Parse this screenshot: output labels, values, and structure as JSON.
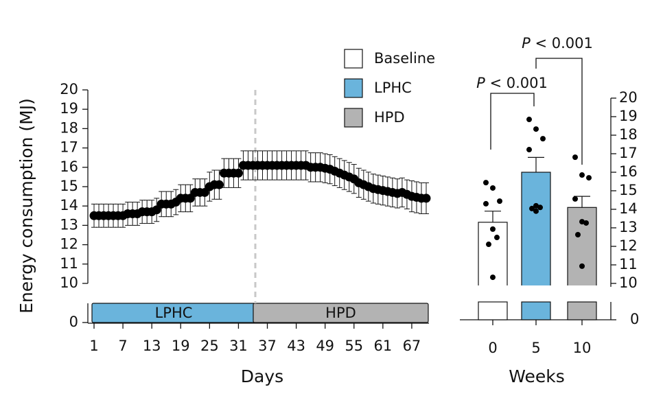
{
  "chart_data": [
    {
      "type": "scatter",
      "ylabel": "Energy consumption (MJ)",
      "xlabel": "Days",
      "x": [
        1,
        2,
        3,
        4,
        5,
        6,
        7,
        8,
        9,
        10,
        11,
        12,
        13,
        14,
        15,
        16,
        17,
        18,
        19,
        20,
        21,
        22,
        23,
        24,
        25,
        26,
        27,
        28,
        29,
        30,
        31,
        32,
        33,
        34,
        35,
        36,
        37,
        38,
        39,
        40,
        41,
        42,
        43,
        44,
        45,
        46,
        47,
        48,
        49,
        50,
        51,
        52,
        53,
        54,
        55,
        56,
        57,
        58,
        59,
        60,
        61,
        62,
        63,
        64,
        65,
        66,
        67,
        68,
        69,
        70
      ],
      "values": [
        13.5,
        13.5,
        13.5,
        13.5,
        13.5,
        13.5,
        13.5,
        13.6,
        13.6,
        13.6,
        13.7,
        13.7,
        13.7,
        13.8,
        14.1,
        14.1,
        14.1,
        14.2,
        14.4,
        14.4,
        14.4,
        14.7,
        14.7,
        14.7,
        15.0,
        15.1,
        15.1,
        15.7,
        15.7,
        15.7,
        15.7,
        16.1,
        16.1,
        16.1,
        16.1,
        16.1,
        16.1,
        16.1,
        16.1,
        16.1,
        16.1,
        16.1,
        16.1,
        16.1,
        16.1,
        16.0,
        16.0,
        16.0,
        15.95,
        15.9,
        15.8,
        15.7,
        15.6,
        15.5,
        15.4,
        15.2,
        15.1,
        15.0,
        14.9,
        14.85,
        14.8,
        14.75,
        14.7,
        14.65,
        14.7,
        14.6,
        14.5,
        14.45,
        14.4,
        14.4
      ],
      "errors": [
        0.6,
        0.6,
        0.6,
        0.6,
        0.6,
        0.6,
        0.6,
        0.6,
        0.6,
        0.6,
        0.6,
        0.6,
        0.6,
        0.6,
        0.65,
        0.65,
        0.65,
        0.65,
        0.7,
        0.7,
        0.7,
        0.7,
        0.7,
        0.7,
        0.75,
        0.75,
        0.75,
        0.75,
        0.75,
        0.75,
        0.75,
        0.75,
        0.75,
        0.75,
        0.75,
        0.75,
        0.75,
        0.75,
        0.75,
        0.75,
        0.75,
        0.75,
        0.75,
        0.75,
        0.75,
        0.75,
        0.75,
        0.75,
        0.75,
        0.75,
        0.75,
        0.75,
        0.75,
        0.75,
        0.75,
        0.75,
        0.75,
        0.75,
        0.75,
        0.75,
        0.75,
        0.75,
        0.75,
        0.75,
        0.75,
        0.75,
        0.8,
        0.8,
        0.8,
        0.8
      ],
      "color": "#000000",
      "xlim": [
        0,
        71
      ],
      "xticks": [
        1,
        7,
        13,
        19,
        25,
        31,
        37,
        43,
        49,
        55,
        61,
        67
      ],
      "ylim": [
        10,
        20
      ],
      "yticks": [
        10,
        11,
        12,
        13,
        14,
        15,
        16,
        17,
        18,
        19,
        20
      ],
      "lower_tick": 0,
      "phase_boundary": 34.5,
      "phases": [
        {
          "label": "LPHC",
          "start": 1,
          "end": 34.5,
          "color": "#6ab4dc"
        },
        {
          "label": "HPD",
          "start": 34.5,
          "end": 70,
          "color": "#b3b3b3"
        }
      ]
    },
    {
      "type": "bar",
      "xlabel": "Weeks",
      "categories": [
        "0",
        "5",
        "10"
      ],
      "series": [
        {
          "name": "Baseline",
          "color": "#ffffff"
        },
        {
          "name": "LPHC",
          "color": "#6ab4dc"
        },
        {
          "name": "HPD",
          "color": "#b3b3b3"
        }
      ],
      "values": [
        13.3,
        16.0,
        14.1
      ],
      "errors": [
        0.6,
        0.8,
        0.6
      ],
      "points": [
        [
          15.44,
          15.15,
          14.44,
          14.3,
          12.93,
          12.48,
          12.11,
          10.33
        ],
        [
          18.85,
          18.33,
          17.81,
          17.22,
          14.19,
          14.1,
          14.04,
          13.9
        ],
        [
          16.81,
          15.85,
          15.7,
          14.56,
          13.33,
          13.26,
          12.63,
          10.93
        ]
      ],
      "ylim": [
        10,
        20
      ],
      "yticks": [
        10,
        11,
        12,
        13,
        14,
        15,
        16,
        17,
        18,
        19,
        20
      ],
      "lower_tick": 0,
      "annotations": [
        "P < 0.001",
        "P < 0.001"
      ]
    }
  ]
}
